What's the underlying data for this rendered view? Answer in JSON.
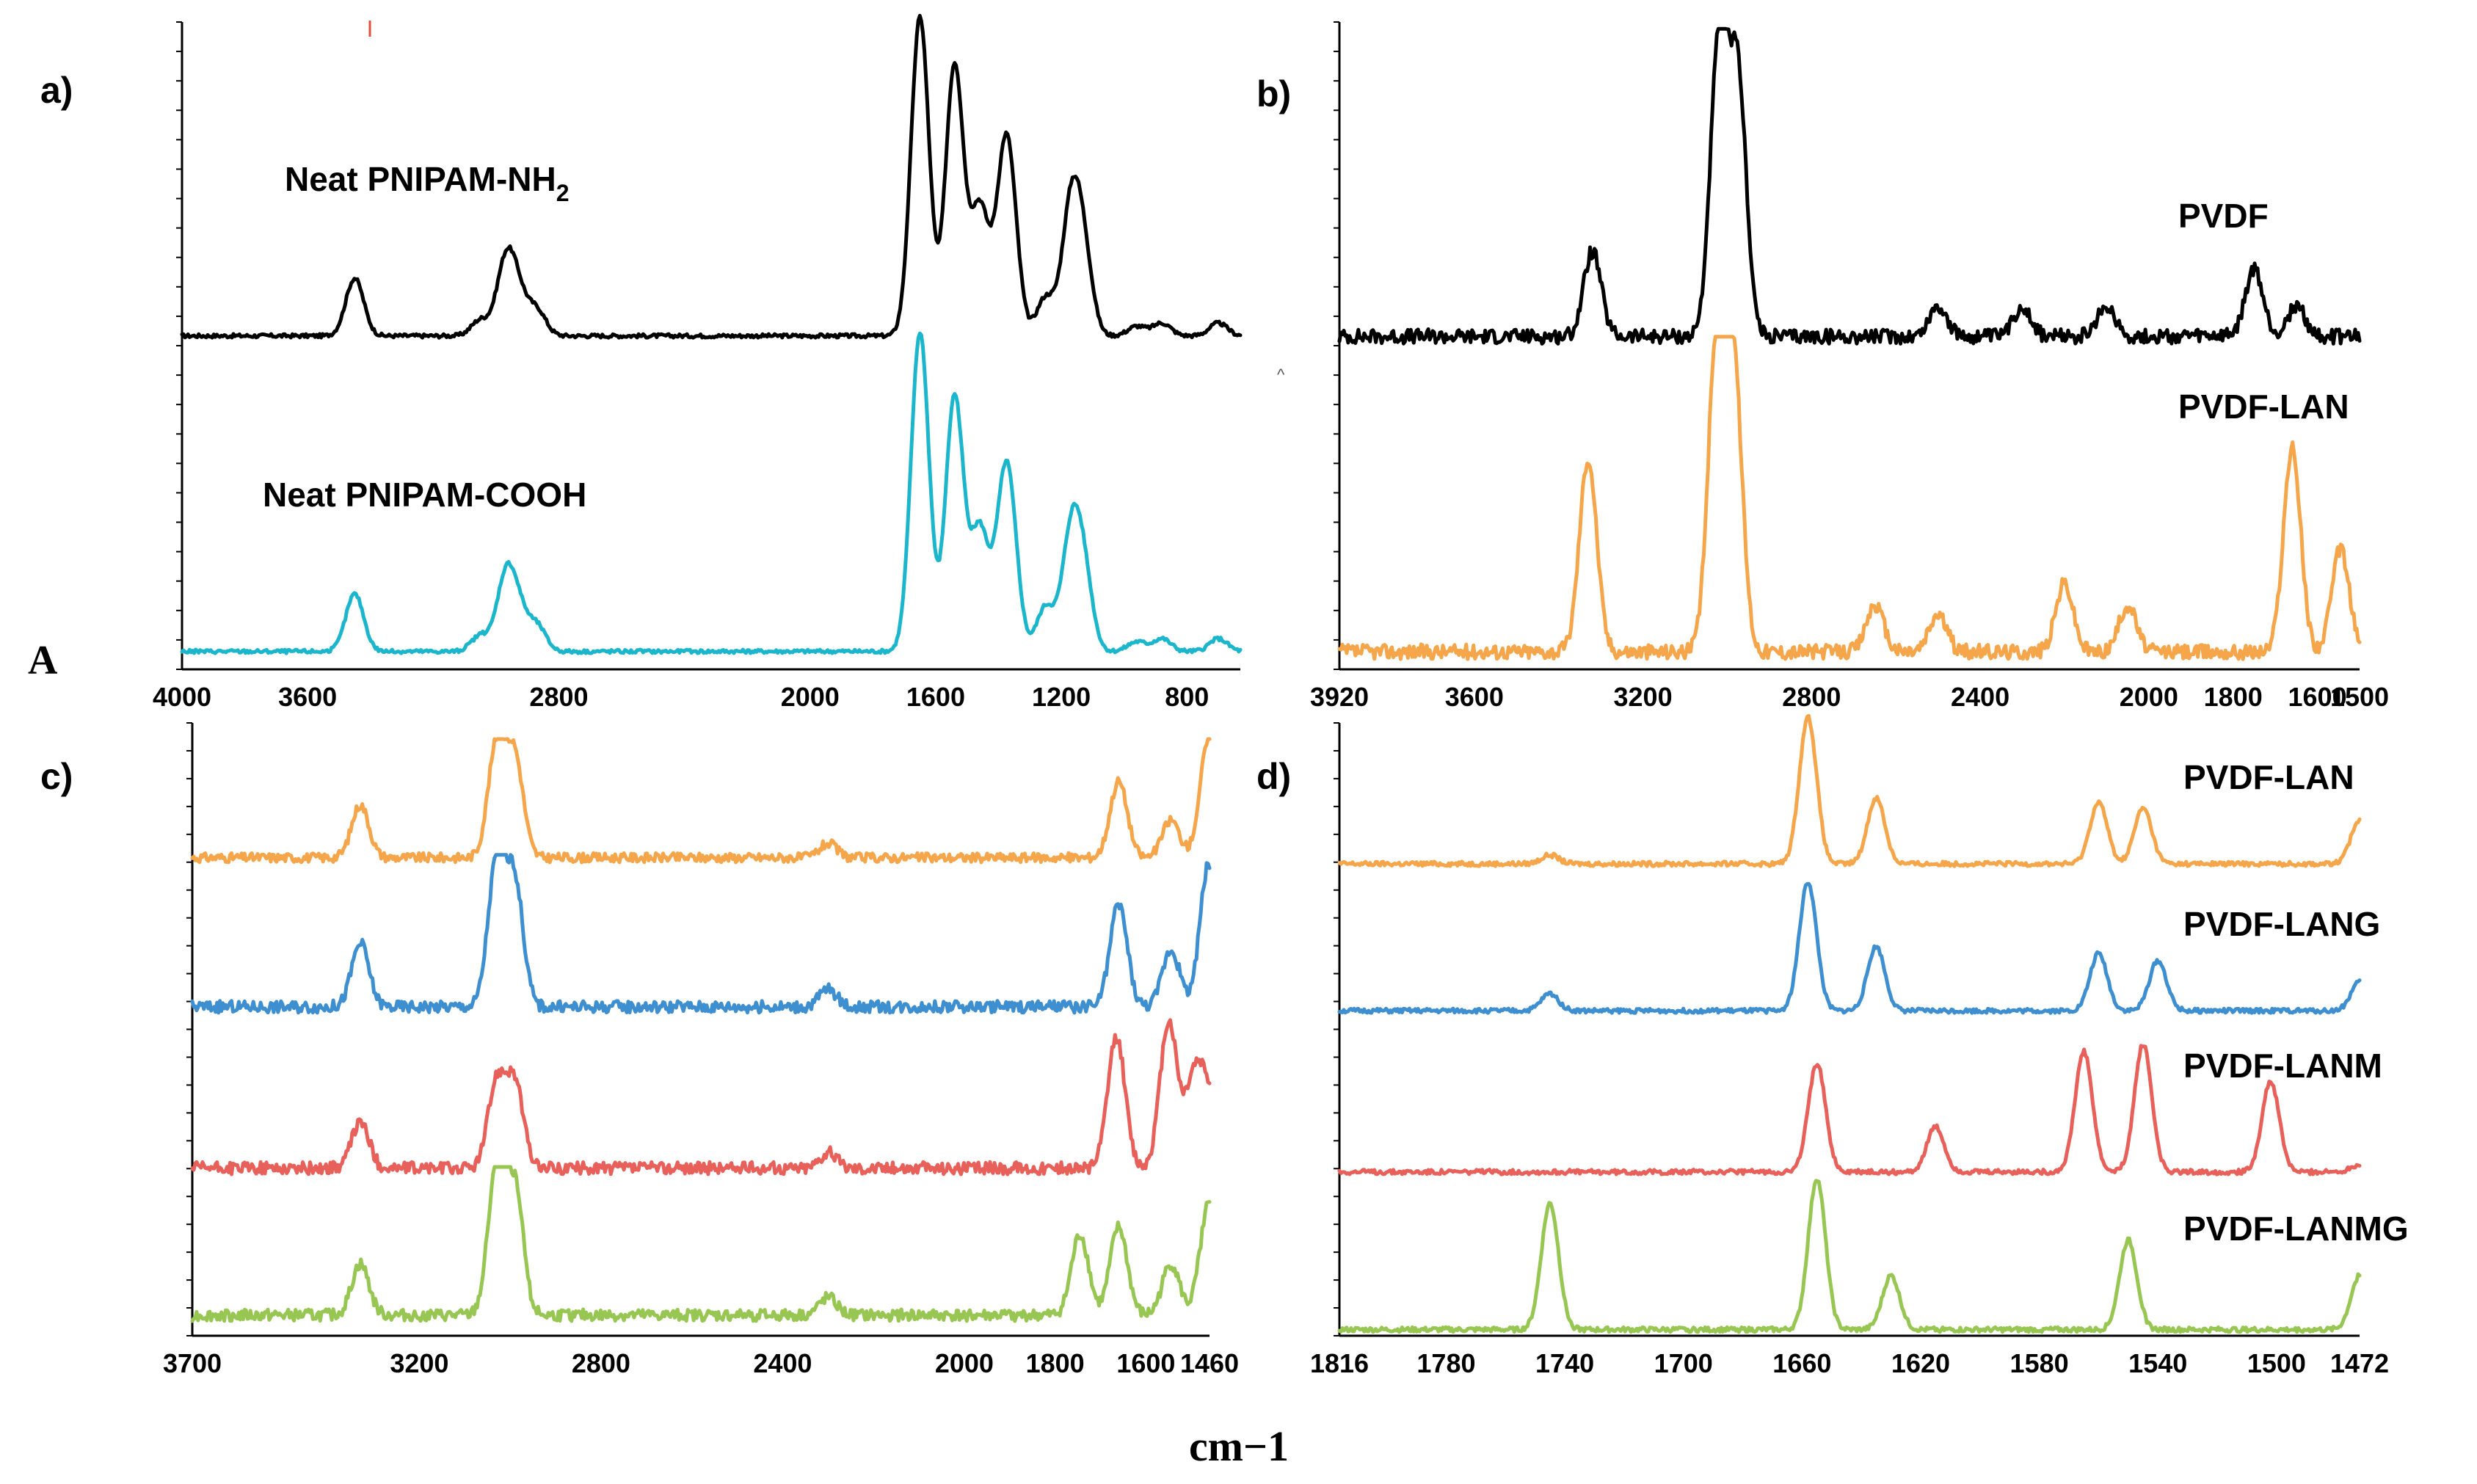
{
  "figure": {
    "xlabel": "cm−1",
    "stray_mark": "A",
    "small_mark": "^"
  },
  "chart_data": [
    {
      "panel": "a)",
      "type": "line",
      "title": "",
      "xlabel": "",
      "ylabel": "",
      "x_reversed": true,
      "xlim": [
        4000,
        630
      ],
      "x_ticks": [
        "4000",
        "3600",
        "2800",
        "2000",
        "1600",
        "1200",
        "800"
      ],
      "x_tick_values": [
        4000,
        3600,
        2800,
        2000,
        1600,
        1200,
        800
      ],
      "series": [
        {
          "name": "Neat PNIPAM-NH2",
          "label_main": "Neat PNIPAM-NH",
          "label_sub": "2",
          "color": "#000000",
          "peaks": [
            [
              3450,
              0.18
            ],
            [
              3050,
              0.05
            ],
            [
              2970,
              0.22
            ],
            [
              2930,
              0.12
            ],
            [
              2870,
              0.08
            ],
            [
              1650,
              1.0
            ],
            [
              1540,
              0.85
            ],
            [
              1460,
              0.4
            ],
            [
              1385,
              0.32
            ],
            [
              1365,
              0.35
            ],
            [
              1250,
              0.12
            ],
            [
              1170,
              0.38
            ],
            [
              1130,
              0.25
            ],
            [
              960,
              0.03
            ],
            [
              880,
              0.04
            ],
            [
              700,
              0.04
            ]
          ]
        },
        {
          "name": "Neat PNIPAM-COOH",
          "label_main": "Neat PNIPAM-COOH",
          "label_sub": "",
          "color": "#1cb6cc",
          "peaks": [
            [
              3450,
              0.18
            ],
            [
              3050,
              0.05
            ],
            [
              2970,
              0.22
            ],
            [
              2930,
              0.12
            ],
            [
              2870,
              0.08
            ],
            [
              1650,
              1.0
            ],
            [
              1540,
              0.8
            ],
            [
              1460,
              0.38
            ],
            [
              1385,
              0.3
            ],
            [
              1365,
              0.33
            ],
            [
              1250,
              0.14
            ],
            [
              1170,
              0.34
            ],
            [
              1130,
              0.24
            ],
            [
              960,
              0.03
            ],
            [
              880,
              0.04
            ],
            [
              700,
              0.04
            ]
          ]
        }
      ]
    },
    {
      "panel": "b)",
      "type": "line",
      "title": "",
      "xlabel": "",
      "ylabel": "",
      "x_reversed": true,
      "xlim": [
        3920,
        1500
      ],
      "x_ticks": [
        "3920",
        "3600",
        "3200",
        "2800",
        "2400",
        "2000",
        "1800",
        "1600",
        "1500"
      ],
      "x_tick_values": [
        3920,
        3600,
        3200,
        2800,
        2400,
        2000,
        1800,
        1600,
        1500
      ],
      "series": [
        {
          "name": "PVDF",
          "color": "#000000",
          "peaks": [
            [
              3320,
              0.28
            ],
            [
              3020,
              0.95
            ],
            [
              2975,
              0.85
            ],
            [
              2500,
              0.1
            ],
            [
              2300,
              0.1
            ],
            [
              2100,
              0.1
            ],
            [
              1750,
              0.22
            ],
            [
              1650,
              0.1
            ]
          ]
        },
        {
          "name": "PVDF-LAN",
          "color": "#f5a54a",
          "peaks": [
            [
              3330,
              0.62
            ],
            [
              3025,
              0.98
            ],
            [
              2985,
              0.9
            ],
            [
              2650,
              0.15
            ],
            [
              2500,
              0.12
            ],
            [
              2200,
              0.22
            ],
            [
              2050,
              0.15
            ],
            [
              1660,
              0.65
            ],
            [
              1545,
              0.33
            ]
          ]
        }
      ]
    },
    {
      "panel": "c)",
      "type": "line",
      "title": "",
      "xlabel": "",
      "ylabel": "",
      "x_reversed": true,
      "xlim": [
        3700,
        1460
      ],
      "x_ticks": [
        "3700",
        "3200",
        "2800",
        "2400",
        "2000",
        "1800",
        "1600",
        "1460"
      ],
      "x_tick_values": [
        3700,
        3200,
        2800,
        2400,
        2000,
        1800,
        1600,
        1460
      ],
      "series": [
        {
          "name": "PVDF-LAN",
          "color": "#f5a54a",
          "peaks": [
            [
              3330,
              0.45
            ],
            [
              3030,
              0.95
            ],
            [
              2990,
              0.85
            ],
            [
              2300,
              0.12
            ],
            [
              1660,
              0.65
            ],
            [
              1545,
              0.32
            ],
            [
              1462,
              1.0
            ]
          ]
        },
        {
          "name": "PVDF-LANG",
          "color": "#3e8fd0",
          "peaks": [
            [
              3330,
              0.42
            ],
            [
              3030,
              0.95
            ],
            [
              2990,
              0.82
            ],
            [
              2300,
              0.12
            ],
            [
              1660,
              0.68
            ],
            [
              1545,
              0.38
            ],
            [
              1462,
              0.95
            ]
          ]
        },
        {
          "name": "PVDF-LANM",
          "color": "#e8605a",
          "peaks": [
            [
              3330,
              0.3
            ],
            [
              3030,
              0.55
            ],
            [
              2990,
              0.55
            ],
            [
              2300,
              0.1
            ],
            [
              1665,
              0.85
            ],
            [
              1550,
              0.95
            ],
            [
              1495,
              0.55
            ],
            [
              1462,
              0.45
            ]
          ]
        },
        {
          "name": "PVDF-LANMG",
          "color": "#98c653",
          "peaks": [
            [
              3330,
              0.35
            ],
            [
              3030,
              0.98
            ],
            [
              2990,
              0.85
            ],
            [
              2300,
              0.12
            ],
            [
              1745,
              0.55
            ],
            [
              1660,
              0.6
            ],
            [
              1545,
              0.35
            ],
            [
              1462,
              0.75
            ]
          ]
        }
      ]
    },
    {
      "panel": "d)",
      "type": "line",
      "title": "",
      "xlabel": "",
      "ylabel": "",
      "x_reversed": true,
      "xlim": [
        1816,
        1472
      ],
      "x_ticks": [
        "1816",
        "1780",
        "1740",
        "1700",
        "1660",
        "1620",
        "1580",
        "1540",
        "1500",
        "1472"
      ],
      "x_tick_values": [
        1816,
        1780,
        1740,
        1700,
        1660,
        1620,
        1580,
        1540,
        1500,
        1472
      ],
      "series": [
        {
          "name": "PVDF-LAN",
          "color": "#f5a54a",
          "peaks": [
            [
              1745,
              0.06
            ],
            [
              1658,
              1.0
            ],
            [
              1635,
              0.45
            ],
            [
              1560,
              0.42
            ],
            [
              1545,
              0.38
            ],
            [
              1472,
              0.3
            ]
          ]
        },
        {
          "name": "PVDF-LANG",
          "color": "#3e8fd0",
          "peaks": [
            [
              1745,
              0.12
            ],
            [
              1658,
              0.9
            ],
            [
              1635,
              0.45
            ],
            [
              1560,
              0.4
            ],
            [
              1540,
              0.35
            ],
            [
              1472,
              0.2
            ]
          ]
        },
        {
          "name": "PVDF-LANM",
          "color": "#e8605a",
          "peaks": [
            [
              1655,
              0.72
            ],
            [
              1615,
              0.3
            ],
            [
              1565,
              0.8
            ],
            [
              1545,
              0.85
            ],
            [
              1502,
              0.6
            ],
            [
              1472,
              0.05
            ]
          ]
        },
        {
          "name": "PVDF-LANMG",
          "color": "#98c653",
          "peaks": [
            [
              1745,
              0.82
            ],
            [
              1655,
              0.98
            ],
            [
              1630,
              0.35
            ],
            [
              1550,
              0.58
            ],
            [
              1472,
              0.35
            ]
          ]
        }
      ]
    }
  ]
}
